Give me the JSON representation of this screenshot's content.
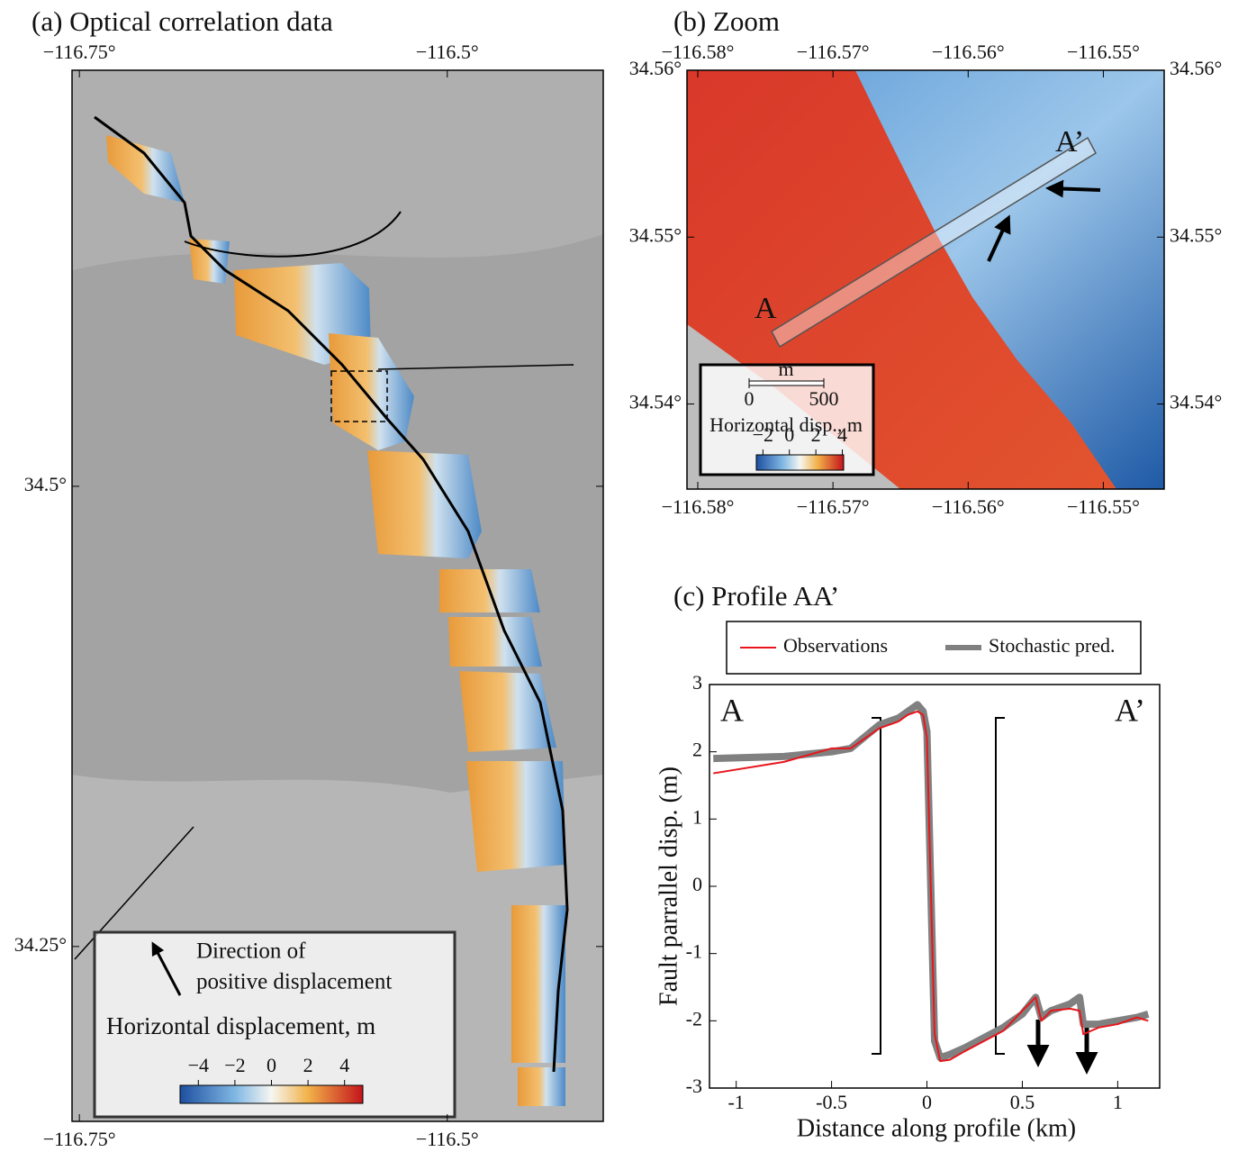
{
  "chart_data": [
    {
      "type": "map",
      "title": "(a) Optical correlation data",
      "xlim": [
        -116.755,
        -116.394
      ],
      "ylim": [
        34.155,
        34.726
      ],
      "xticks": [
        {
          "value": -116.75,
          "label": "−116.75°"
        },
        {
          "value": -116.5,
          "label": "−116.5°"
        }
      ],
      "yticks": [
        {
          "value": 34.5,
          "label": "34.5°"
        },
        {
          "value": 34.25,
          "label": "34.25°"
        }
      ],
      "annotations": [
        "Direction of",
        "positive displacement"
      ],
      "colorbar": {
        "label": "Horizontal displacement, m",
        "lim": [
          -5,
          5
        ],
        "ticks": [
          {
            "value": -4,
            "label": "−4"
          },
          {
            "value": -2,
            "label": "−2"
          },
          0,
          2,
          4
        ]
      }
    },
    {
      "type": "map",
      "title": "(b) Zoom",
      "xlim": [
        -116.5808,
        -116.5455
      ],
      "ylim": [
        34.5349,
        34.56
      ],
      "xticks": [
        {
          "value": -116.58,
          "label": "−116.58°"
        },
        {
          "value": -116.57,
          "label": "−116.57°"
        },
        {
          "value": -116.56,
          "label": "−116.56°"
        },
        {
          "value": -116.55,
          "label": "−116.55°"
        }
      ],
      "yticks": [
        {
          "value": 34.56,
          "label": "34.56°"
        },
        {
          "value": 34.55,
          "label": "34.55°"
        },
        {
          "value": 34.54,
          "label": "34.54°"
        }
      ],
      "annotations": [
        "A",
        "A’"
      ],
      "scalebar": {
        "unit": "m",
        "ticks": [
          0,
          500
        ]
      },
      "colorbar": {
        "label": "Horizontal disp., m",
        "lim": [
          -2.5,
          4.1
        ],
        "ticks": [
          {
            "value": -2,
            "label": "−2"
          },
          0,
          2,
          4
        ]
      }
    },
    {
      "type": "line",
      "title": "(c) Profile AA’",
      "x_label": "Distance along profile (km)",
      "y_label": "Fault parrallel disp. (m)",
      "annotations": [
        "A",
        "A’"
      ],
      "xlim": [
        -1.14,
        1.22
      ],
      "ylim": [
        -3,
        3
      ],
      "xticks": [
        -1,
        -0.5,
        0,
        0.5,
        1
      ],
      "yticks": [
        3,
        2,
        1,
        0,
        -1,
        -2,
        -3
      ],
      "x": [
        -1.12,
        -0.75,
        -0.5,
        -0.4,
        -0.25,
        -0.15,
        -0.1,
        -0.05,
        -0.02,
        0,
        0.02,
        0.04,
        0.07,
        0.12,
        0.2,
        0.3,
        0.4,
        0.5,
        0.57,
        0.6,
        0.65,
        0.75,
        0.8,
        0.82,
        0.9,
        1.0,
        1.1,
        1.16
      ],
      "series": [
        {
          "name": "Observations",
          "color": "#e8151b",
          "values": [
            1.68,
            1.85,
            2.05,
            2.05,
            2.35,
            2.45,
            2.55,
            2.6,
            2.55,
            2.2,
            0,
            -2.2,
            -2.6,
            -2.58,
            -2.45,
            -2.3,
            -2.15,
            -1.85,
            -1.65,
            -2.0,
            -1.85,
            -1.82,
            -1.85,
            -2.2,
            -2.1,
            -2.05,
            -1.95,
            -2.0
          ]
        },
        {
          "name": "Stochastic pred.",
          "color": "#808080",
          "values": [
            1.9,
            1.93,
            2.0,
            2.05,
            2.4,
            2.5,
            2.6,
            2.7,
            2.6,
            2.3,
            0,
            -2.3,
            -2.55,
            -2.5,
            -2.4,
            -2.25,
            -2.1,
            -1.9,
            -1.65,
            -1.95,
            -1.85,
            -1.75,
            -1.65,
            -2.05,
            -2.05,
            -2.0,
            -1.95,
            -1.9
          ]
        }
      ]
    }
  ]
}
